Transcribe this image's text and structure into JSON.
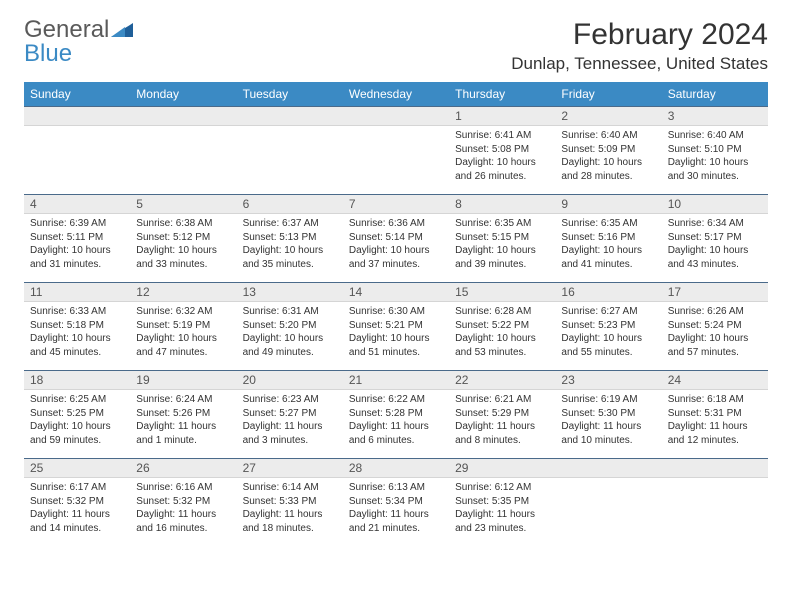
{
  "brand": {
    "name1": "General",
    "name2": "Blue"
  },
  "title": "February 2024",
  "location": "Dunlap, Tennessee, United States",
  "colors": {
    "header_bg": "#3b8ac4",
    "header_text": "#ffffff",
    "daynum_bg": "#ececec",
    "daynum_border_top": "#4a6a8a",
    "body_text": "#333333",
    "logo_gray": "#5a5a5a",
    "logo_blue": "#3b8ac4"
  },
  "day_names": [
    "Sunday",
    "Monday",
    "Tuesday",
    "Wednesday",
    "Thursday",
    "Friday",
    "Saturday"
  ],
  "weeks": [
    [
      null,
      null,
      null,
      null,
      {
        "n": "1",
        "sr": "6:41 AM",
        "ss": "5:08 PM",
        "d": "10 hours and 26 minutes."
      },
      {
        "n": "2",
        "sr": "6:40 AM",
        "ss": "5:09 PM",
        "d": "10 hours and 28 minutes."
      },
      {
        "n": "3",
        "sr": "6:40 AM",
        "ss": "5:10 PM",
        "d": "10 hours and 30 minutes."
      }
    ],
    [
      {
        "n": "4",
        "sr": "6:39 AM",
        "ss": "5:11 PM",
        "d": "10 hours and 31 minutes."
      },
      {
        "n": "5",
        "sr": "6:38 AM",
        "ss": "5:12 PM",
        "d": "10 hours and 33 minutes."
      },
      {
        "n": "6",
        "sr": "6:37 AM",
        "ss": "5:13 PM",
        "d": "10 hours and 35 minutes."
      },
      {
        "n": "7",
        "sr": "6:36 AM",
        "ss": "5:14 PM",
        "d": "10 hours and 37 minutes."
      },
      {
        "n": "8",
        "sr": "6:35 AM",
        "ss": "5:15 PM",
        "d": "10 hours and 39 minutes."
      },
      {
        "n": "9",
        "sr": "6:35 AM",
        "ss": "5:16 PM",
        "d": "10 hours and 41 minutes."
      },
      {
        "n": "10",
        "sr": "6:34 AM",
        "ss": "5:17 PM",
        "d": "10 hours and 43 minutes."
      }
    ],
    [
      {
        "n": "11",
        "sr": "6:33 AM",
        "ss": "5:18 PM",
        "d": "10 hours and 45 minutes."
      },
      {
        "n": "12",
        "sr": "6:32 AM",
        "ss": "5:19 PM",
        "d": "10 hours and 47 minutes."
      },
      {
        "n": "13",
        "sr": "6:31 AM",
        "ss": "5:20 PM",
        "d": "10 hours and 49 minutes."
      },
      {
        "n": "14",
        "sr": "6:30 AM",
        "ss": "5:21 PM",
        "d": "10 hours and 51 minutes."
      },
      {
        "n": "15",
        "sr": "6:28 AM",
        "ss": "5:22 PM",
        "d": "10 hours and 53 minutes."
      },
      {
        "n": "16",
        "sr": "6:27 AM",
        "ss": "5:23 PM",
        "d": "10 hours and 55 minutes."
      },
      {
        "n": "17",
        "sr": "6:26 AM",
        "ss": "5:24 PM",
        "d": "10 hours and 57 minutes."
      }
    ],
    [
      {
        "n": "18",
        "sr": "6:25 AM",
        "ss": "5:25 PM",
        "d": "10 hours and 59 minutes."
      },
      {
        "n": "19",
        "sr": "6:24 AM",
        "ss": "5:26 PM",
        "d": "11 hours and 1 minute."
      },
      {
        "n": "20",
        "sr": "6:23 AM",
        "ss": "5:27 PM",
        "d": "11 hours and 3 minutes."
      },
      {
        "n": "21",
        "sr": "6:22 AM",
        "ss": "5:28 PM",
        "d": "11 hours and 6 minutes."
      },
      {
        "n": "22",
        "sr": "6:21 AM",
        "ss": "5:29 PM",
        "d": "11 hours and 8 minutes."
      },
      {
        "n": "23",
        "sr": "6:19 AM",
        "ss": "5:30 PM",
        "d": "11 hours and 10 minutes."
      },
      {
        "n": "24",
        "sr": "6:18 AM",
        "ss": "5:31 PM",
        "d": "11 hours and 12 minutes."
      }
    ],
    [
      {
        "n": "25",
        "sr": "6:17 AM",
        "ss": "5:32 PM",
        "d": "11 hours and 14 minutes."
      },
      {
        "n": "26",
        "sr": "6:16 AM",
        "ss": "5:32 PM",
        "d": "11 hours and 16 minutes."
      },
      {
        "n": "27",
        "sr": "6:14 AM",
        "ss": "5:33 PM",
        "d": "11 hours and 18 minutes."
      },
      {
        "n": "28",
        "sr": "6:13 AM",
        "ss": "5:34 PM",
        "d": "11 hours and 21 minutes."
      },
      {
        "n": "29",
        "sr": "6:12 AM",
        "ss": "5:35 PM",
        "d": "11 hours and 23 minutes."
      },
      null,
      null
    ]
  ],
  "labels": {
    "sunrise": "Sunrise:",
    "sunset": "Sunset:",
    "daylight": "Daylight:"
  }
}
